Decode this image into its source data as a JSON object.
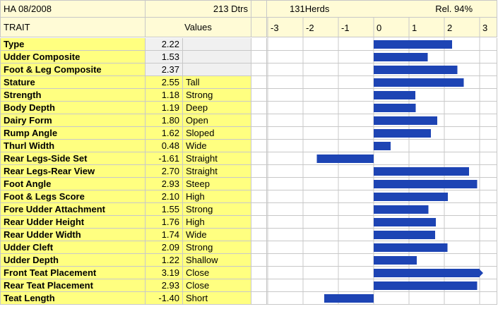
{
  "header": {
    "sire_line": "HA 08/2008",
    "dtrs": "213 Dtrs",
    "herds": "131Herds",
    "rel": "Rel. 94%",
    "trait_col": "TRAIT",
    "values_col": "Values"
  },
  "colors": {
    "accent_yellow": "#ffff80",
    "cream": "#fffbd6",
    "gray_value": "#f0f0f0",
    "bar_blue": "#1d44b4",
    "grid_gray": "#c8c8c8"
  },
  "chart_data": {
    "type": "bar",
    "orientation": "horizontal",
    "xlim": [
      -3,
      3
    ],
    "ticks": [
      "-3",
      "-2",
      "-1",
      "0",
      "1",
      "2",
      "3"
    ],
    "tick_values": [
      -3,
      -2,
      -1,
      0,
      1,
      2,
      3
    ],
    "grid": true,
    "categories": [
      "Type",
      "Udder Composite",
      "Foot & Leg Composite",
      "Stature",
      "Strength",
      "Body Depth",
      "Dairy Form",
      "Rump Angle",
      "Thurl Width",
      "Rear Legs-Side Set",
      "Rear Legs-Rear View",
      "Foot Angle",
      "Foot & Legs Score",
      "Fore Udder Attachment",
      "Rear Udder Height",
      "Rear Udder Width",
      "Udder Cleft",
      "Udder Depth",
      "Front Teat Placement",
      "Rear Teat Placement",
      "Teat Length"
    ],
    "value_labels": [
      "2.22",
      "1.53",
      "2.37",
      "2.55",
      "1.18",
      "1.19",
      "1.80",
      "1.62",
      "0.48",
      "-1.61",
      "2.70",
      "2.93",
      "2.10",
      "1.55",
      "1.76",
      "1.74",
      "2.09",
      "1.22",
      "3.19",
      "2.93",
      "-1.40"
    ],
    "descriptors": [
      "",
      "",
      "",
      "Tall",
      "Strong",
      "Deep",
      "Open",
      "Sloped",
      "Wide",
      "Straight",
      "Straight",
      "Steep",
      "High",
      "Strong",
      "High",
      "Wide",
      "Strong",
      "Shallow",
      "Close",
      "Close",
      "Short"
    ],
    "values": [
      2.22,
      1.53,
      2.37,
      2.55,
      1.18,
      1.19,
      1.8,
      1.62,
      0.48,
      -1.61,
      2.7,
      2.93,
      2.1,
      1.55,
      1.76,
      1.74,
      2.09,
      1.22,
      3.19,
      2.93,
      -1.4
    ]
  }
}
